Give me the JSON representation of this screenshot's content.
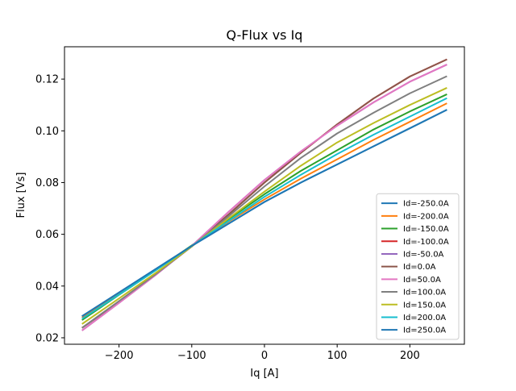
{
  "chart_data": {
    "type": "line",
    "title": "Q-Flux vs Iq",
    "xlabel": "Iq [A]",
    "ylabel": "Flux [Vs]",
    "xlim": [
      -275,
      275
    ],
    "ylim": [
      0.0175,
      0.1325
    ],
    "xticks": [
      -200,
      -100,
      0,
      100,
      200
    ],
    "xtick_labels": [
      "−200",
      "−100",
      "0",
      "100",
      "200"
    ],
    "yticks": [
      0.02,
      0.04,
      0.06,
      0.08,
      0.1,
      0.12
    ],
    "ytick_labels": [
      "0.02",
      "0.04",
      "0.06",
      "0.08",
      "0.10",
      "0.12"
    ],
    "grid": false,
    "legend_position": "lower right",
    "x": [
      -250,
      -200,
      -150,
      -100,
      -50,
      0,
      50,
      100,
      150,
      200,
      250
    ],
    "series": [
      {
        "name": "Id=-250.0A",
        "color": "#1f77b4",
        "values": [
          0.0285,
          0.0375,
          0.0465,
          0.0555,
          0.064,
          0.0725,
          0.08,
          0.087,
          0.094,
          0.101,
          0.108
        ]
      },
      {
        "name": "Id=-200.0A",
        "color": "#ff7f0e",
        "values": [
          0.028,
          0.0372,
          0.0462,
          0.0556,
          0.0648,
          0.0735,
          0.0815,
          0.089,
          0.0965,
          0.1035,
          0.1105
        ]
      },
      {
        "name": "Id=-150.0A",
        "color": "#2ca02c",
        "values": [
          0.027,
          0.0366,
          0.046,
          0.0557,
          0.0657,
          0.0755,
          0.0845,
          0.0925,
          0.1005,
          0.1075,
          0.114
        ]
      },
      {
        "name": "Id=-100.0A",
        "color": "#d62728",
        "values": [
          0.024,
          0.034,
          0.0445,
          0.0553,
          0.0675,
          0.08,
          0.0915,
          0.1025,
          0.1125,
          0.121,
          0.1275
        ]
      },
      {
        "name": "Id=-50.0A",
        "color": "#9467bd",
        "values": [
          0.023,
          0.0335,
          0.0442,
          0.0555,
          0.0685,
          0.081,
          0.092,
          0.102,
          0.111,
          0.119,
          0.1255
        ]
      },
      {
        "name": "Id=0.0A",
        "color": "#8c564b",
        "values": [
          0.024,
          0.034,
          0.0445,
          0.0553,
          0.0675,
          0.08,
          0.0915,
          0.1025,
          0.1125,
          0.121,
          0.1275
        ]
      },
      {
        "name": "Id=50.0A",
        "color": "#e377c2",
        "values": [
          0.023,
          0.0335,
          0.0442,
          0.0555,
          0.0685,
          0.081,
          0.092,
          0.102,
          0.111,
          0.119,
          0.1255
        ]
      },
      {
        "name": "Id=100.0A",
        "color": "#7f7f7f",
        "values": [
          0.024,
          0.0342,
          0.0445,
          0.0553,
          0.0668,
          0.0785,
          0.0895,
          0.099,
          0.107,
          0.1145,
          0.121
        ]
      },
      {
        "name": "Id=150.0A",
        "color": "#bcbd22",
        "values": [
          0.0255,
          0.0352,
          0.045,
          0.0553,
          0.066,
          0.0765,
          0.0865,
          0.0955,
          0.103,
          0.11,
          0.1165
        ]
      },
      {
        "name": "Id=200.0A",
        "color": "#17becf",
        "values": [
          0.0275,
          0.0367,
          0.046,
          0.0555,
          0.065,
          0.0745,
          0.083,
          0.091,
          0.0985,
          0.1055,
          0.1125
        ]
      },
      {
        "name": "Id=250.0A",
        "color": "#1f77b4",
        "values": [
          0.0285,
          0.0375,
          0.0465,
          0.0555,
          0.064,
          0.0725,
          0.08,
          0.087,
          0.094,
          0.101,
          0.108
        ]
      }
    ]
  }
}
